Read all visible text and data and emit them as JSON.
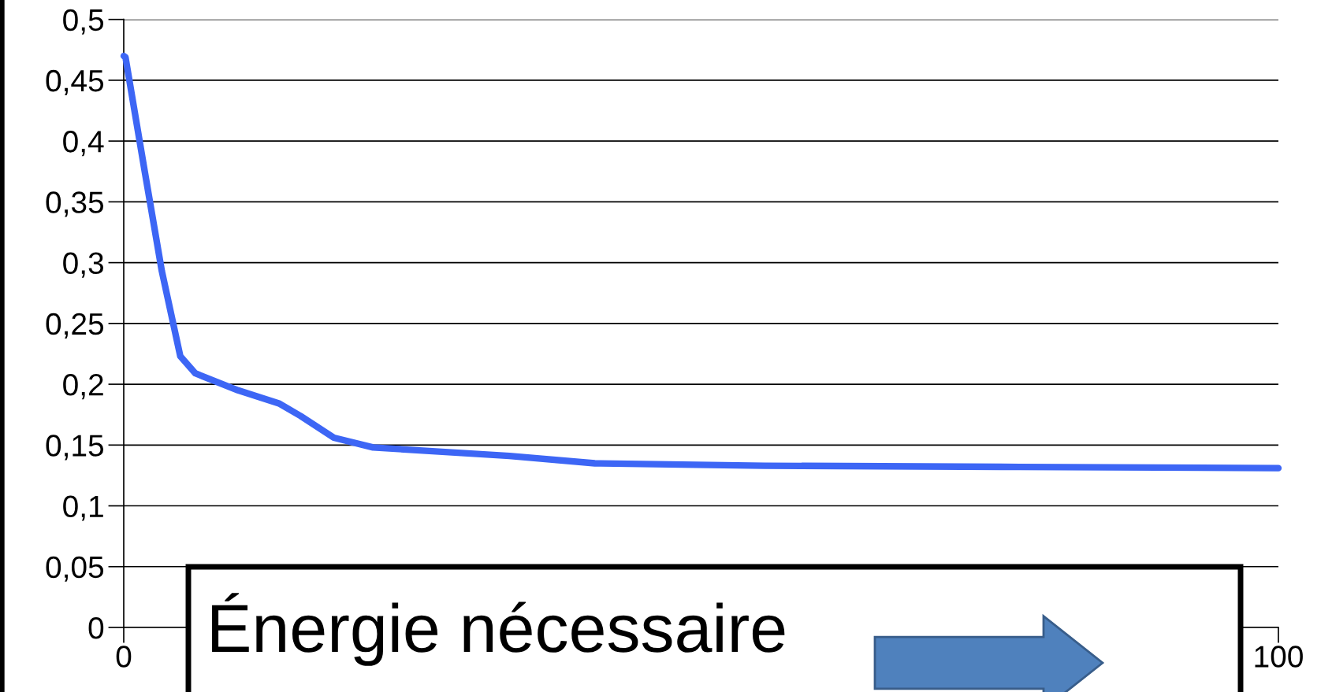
{
  "chart_data": {
    "type": "line",
    "x": [
      0,
      0.15,
      1.8,
      3.3,
      4.9,
      6.2,
      9.9,
      13.5,
      15.3,
      18.2,
      21.6,
      33.4,
      40.8,
      55.5,
      77.6,
      100
    ],
    "series": [
      {
        "color": "#3d66f5",
        "values": [
          0.47,
          0.469,
          0.376,
          0.293,
          0.223,
          0.209,
          0.195,
          0.184,
          0.174,
          0.156,
          0.148,
          0.141,
          0.135,
          0.133,
          0.132,
          0.131
        ]
      }
    ],
    "xlim": [
      0,
      100
    ],
    "xticks": [
      0,
      100
    ],
    "ylim": [
      0,
      0.5
    ],
    "yticks": [
      {
        "value": 0,
        "label": "0"
      },
      {
        "value": 0.05,
        "label": "0,05"
      },
      {
        "value": 0.1,
        "label": "0,1"
      },
      {
        "value": 0.15,
        "label": "0,15"
      },
      {
        "value": 0.2,
        "label": "0,2"
      },
      {
        "value": 0.25,
        "label": "0,25"
      },
      {
        "value": 0.3,
        "label": "0,3"
      },
      {
        "value": 0.35,
        "label": "0,35"
      },
      {
        "value": 0.4,
        "label": "0,4"
      },
      {
        "value": 0.45,
        "label": "0,45"
      },
      {
        "value": 0.5,
        "label": "0,5"
      }
    ],
    "grid": "y",
    "marker": "none",
    "line_style": "solid",
    "annotations": [
      "Énergie nécessaire"
    ]
  }
}
